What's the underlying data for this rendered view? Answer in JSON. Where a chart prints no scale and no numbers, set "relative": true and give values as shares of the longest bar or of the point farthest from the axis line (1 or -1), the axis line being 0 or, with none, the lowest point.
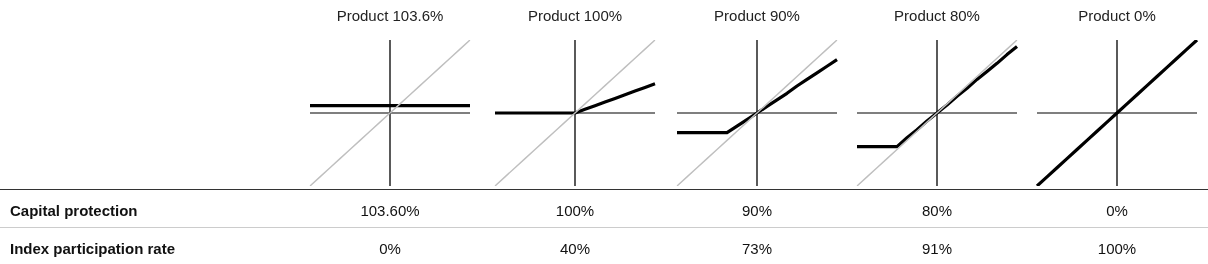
{
  "chart_data": [
    {
      "type": "line",
      "title": "Product 103.6%",
      "relative": true,
      "categories": [
        null,
        null,
        null,
        null,
        null,
        null,
        null,
        null,
        null,
        null,
        null,
        null,
        null,
        null,
        null,
        null,
        null
      ],
      "series": [
        {
          "color": "#bfbfbf",
          "values": [
            -1,
            -0.875,
            -0.75,
            -0.625,
            -0.5,
            -0.375,
            -0.25,
            -0.125,
            0,
            0.125,
            0.25,
            0.375,
            0.5,
            0.625,
            0.75,
            0.875,
            1
          ]
        },
        {
          "color": "#000000",
          "values": [
            0.1,
            0.1,
            0.1,
            0.1,
            0.1,
            0.1,
            0.1,
            0.1,
            0.1,
            0.1,
            0.1,
            0.1,
            0.1,
            0.1,
            0.1,
            0.1,
            0.1
          ]
        }
      ]
    },
    {
      "type": "line",
      "title": "Product 100%",
      "relative": true,
      "categories": [
        null,
        null,
        null,
        null,
        null,
        null,
        null,
        null,
        null,
        null,
        null,
        null,
        null,
        null,
        null,
        null,
        null
      ],
      "series": [
        {
          "color": "#bfbfbf",
          "values": [
            -1,
            -0.875,
            -0.75,
            -0.625,
            -0.5,
            -0.375,
            -0.25,
            -0.125,
            0,
            0.125,
            0.25,
            0.375,
            0.5,
            0.625,
            0.75,
            0.875,
            1
          ]
        },
        {
          "color": "#000000",
          "values": [
            0,
            0,
            0,
            0,
            0,
            0,
            0,
            0,
            0,
            0.05,
            0.1,
            0.15,
            0.2,
            0.25,
            0.3,
            0.35,
            0.4
          ]
        }
      ]
    },
    {
      "type": "line",
      "title": "Product 90%",
      "relative": true,
      "categories": [
        null,
        null,
        null,
        null,
        null,
        null,
        null,
        null,
        null,
        null,
        null,
        null,
        null,
        null,
        null,
        null,
        null
      ],
      "series": [
        {
          "color": "#bfbfbf",
          "values": [
            -1,
            -0.875,
            -0.75,
            -0.625,
            -0.5,
            -0.375,
            -0.25,
            -0.125,
            0,
            0.125,
            0.25,
            0.375,
            0.5,
            0.625,
            0.75,
            0.875,
            1
          ]
        },
        {
          "color": "#000000",
          "values": [
            -0.27,
            -0.27,
            -0.27,
            -0.27,
            -0.27,
            -0.27,
            -0.18,
            -0.09,
            0,
            0.09,
            0.18,
            0.27,
            0.37,
            0.46,
            0.55,
            0.64,
            0.73
          ]
        }
      ]
    },
    {
      "type": "line",
      "title": "Product 80%",
      "relative": true,
      "categories": [
        null,
        null,
        null,
        null,
        null,
        null,
        null,
        null,
        null,
        null,
        null,
        null,
        null,
        null,
        null,
        null,
        null
      ],
      "series": [
        {
          "color": "#bfbfbf",
          "values": [
            -1,
            -0.875,
            -0.75,
            -0.625,
            -0.5,
            -0.375,
            -0.25,
            -0.125,
            0,
            0.125,
            0.25,
            0.375,
            0.5,
            0.625,
            0.75,
            0.875,
            1
          ]
        },
        {
          "color": "#000000",
          "values": [
            -0.46,
            -0.46,
            -0.46,
            -0.46,
            -0.46,
            -0.34,
            -0.23,
            -0.11,
            0,
            0.11,
            0.23,
            0.34,
            0.46,
            0.57,
            0.68,
            0.8,
            0.91
          ]
        }
      ]
    },
    {
      "type": "line",
      "title": "Product 0%",
      "relative": true,
      "categories": [
        null,
        null,
        null,
        null,
        null,
        null,
        null,
        null,
        null,
        null,
        null,
        null,
        null,
        null,
        null,
        null,
        null
      ],
      "series": [
        {
          "color": "#000000",
          "values": [
            -1,
            -0.875,
            -0.75,
            -0.625,
            -0.5,
            -0.375,
            -0.25,
            -0.125,
            0,
            0.125,
            0.25,
            0.375,
            0.5,
            0.625,
            0.75,
            0.875,
            1
          ]
        }
      ]
    },
    {
      "type": "other",
      "annotations": [
        "Capital protection",
        "103.60%",
        "100%",
        "90%",
        "80%",
        "0%",
        "Index participation rate",
        "0%",
        "40%",
        "73%",
        "91%",
        "100%"
      ]
    }
  ]
}
